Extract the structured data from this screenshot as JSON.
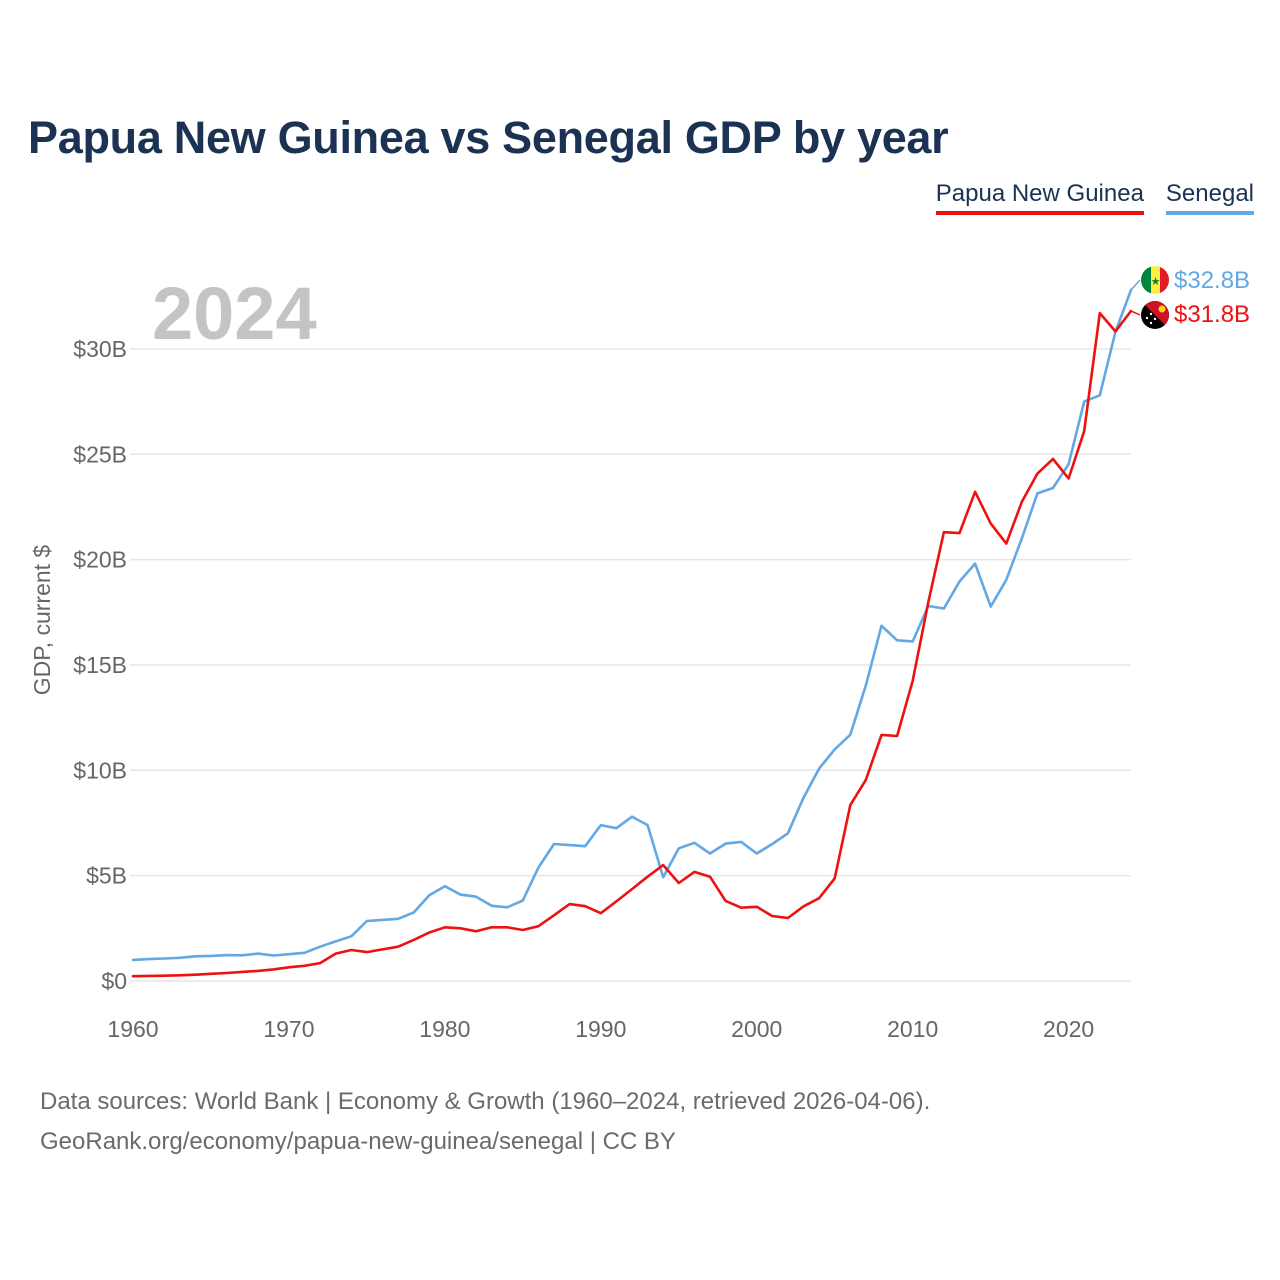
{
  "title": "Papua New Guinea vs Senegal GDP by year",
  "legend": {
    "png_label": "Papua New Guinea",
    "senegal_label": "Senegal"
  },
  "year_display": "2024",
  "source": {
    "line1": "Data sources: World Bank | Economy & Growth (1960–2024, retrieved 2026-04-06).",
    "line2": "GeoRank.org/economy/papua-new-guinea/senegal | CC BY"
  },
  "colors": {
    "png": "#ee1111",
    "senegal": "#62a8e5",
    "grid": "#e6e6e6",
    "axis_text": "#666666",
    "year": "#c4c4c4"
  },
  "chart_data": {
    "type": "line",
    "title": "Papua New Guinea vs Senegal GDP by year",
    "xlabel": "",
    "ylabel": "GDP, current $",
    "xlim": [
      1960,
      2024
    ],
    "ylim": [
      0,
      33
    ],
    "x_ticks": [
      1960,
      1970,
      1980,
      1990,
      2000,
      2010,
      2020
    ],
    "y_ticks": [
      0,
      5,
      10,
      15,
      20,
      25,
      30
    ],
    "y_tick_labels": [
      "$0",
      "$5B",
      "$10B",
      "$15B",
      "$20B",
      "$25B",
      "$30B"
    ],
    "end_labels": {
      "senegal": "$32.8B",
      "png": "$31.8B"
    },
    "series": [
      {
        "name": "Papua New Guinea",
        "unit": "billion USD",
        "values": [
          [
            1960,
            0.23
          ],
          [
            1961,
            0.24
          ],
          [
            1962,
            0.25
          ],
          [
            1963,
            0.27
          ],
          [
            1964,
            0.3
          ],
          [
            1965,
            0.34
          ],
          [
            1966,
            0.38
          ],
          [
            1967,
            0.43
          ],
          [
            1968,
            0.48
          ],
          [
            1969,
            0.55
          ],
          [
            1970,
            0.65
          ],
          [
            1971,
            0.72
          ],
          [
            1972,
            0.85
          ],
          [
            1973,
            1.3
          ],
          [
            1974,
            1.47
          ],
          [
            1975,
            1.37
          ],
          [
            1976,
            1.5
          ],
          [
            1977,
            1.63
          ],
          [
            1978,
            1.95
          ],
          [
            1979,
            2.3
          ],
          [
            1980,
            2.55
          ],
          [
            1981,
            2.5
          ],
          [
            1982,
            2.36
          ],
          [
            1983,
            2.55
          ],
          [
            1984,
            2.55
          ],
          [
            1985,
            2.42
          ],
          [
            1986,
            2.6
          ],
          [
            1987,
            3.12
          ],
          [
            1988,
            3.65
          ],
          [
            1989,
            3.55
          ],
          [
            1990,
            3.22
          ],
          [
            1991,
            3.78
          ],
          [
            1992,
            4.36
          ],
          [
            1993,
            4.95
          ],
          [
            1994,
            5.5
          ],
          [
            1995,
            4.65
          ],
          [
            1996,
            5.18
          ],
          [
            1997,
            4.95
          ],
          [
            1998,
            3.8
          ],
          [
            1999,
            3.48
          ],
          [
            2000,
            3.52
          ],
          [
            2001,
            3.08
          ],
          [
            2002,
            2.99
          ],
          [
            2003,
            3.54
          ],
          [
            2004,
            3.93
          ],
          [
            2005,
            4.87
          ],
          [
            2006,
            8.35
          ],
          [
            2007,
            9.55
          ],
          [
            2008,
            11.68
          ],
          [
            2009,
            11.63
          ],
          [
            2010,
            14.25
          ],
          [
            2011,
            17.98
          ],
          [
            2012,
            21.3
          ],
          [
            2013,
            21.26
          ],
          [
            2014,
            23.22
          ],
          [
            2015,
            21.72
          ],
          [
            2016,
            20.76
          ],
          [
            2017,
            22.74
          ],
          [
            2018,
            24.08
          ],
          [
            2019,
            24.78
          ],
          [
            2020,
            23.85
          ],
          [
            2021,
            26.1
          ],
          [
            2022,
            31.7
          ],
          [
            2023,
            30.83
          ],
          [
            2024,
            31.8
          ]
        ]
      },
      {
        "name": "Senegal",
        "unit": "billion USD",
        "values": [
          [
            1960,
            1.0
          ],
          [
            1961,
            1.04
          ],
          [
            1962,
            1.07
          ],
          [
            1963,
            1.1
          ],
          [
            1964,
            1.17
          ],
          [
            1965,
            1.19
          ],
          [
            1966,
            1.23
          ],
          [
            1967,
            1.22
          ],
          [
            1968,
            1.3
          ],
          [
            1969,
            1.21
          ],
          [
            1970,
            1.27
          ],
          [
            1971,
            1.34
          ],
          [
            1972,
            1.63
          ],
          [
            1973,
            1.88
          ],
          [
            1974,
            2.12
          ],
          [
            1975,
            2.85
          ],
          [
            1976,
            2.9
          ],
          [
            1977,
            2.95
          ],
          [
            1978,
            3.25
          ],
          [
            1979,
            4.07
          ],
          [
            1980,
            4.5
          ],
          [
            1981,
            4.1
          ],
          [
            1982,
            4.0
          ],
          [
            1983,
            3.57
          ],
          [
            1984,
            3.5
          ],
          [
            1985,
            3.82
          ],
          [
            1986,
            5.38
          ],
          [
            1987,
            6.5
          ],
          [
            1988,
            6.45
          ],
          [
            1989,
            6.4
          ],
          [
            1990,
            7.4
          ],
          [
            1991,
            7.25
          ],
          [
            1992,
            7.8
          ],
          [
            1993,
            7.4
          ],
          [
            1994,
            4.92
          ],
          [
            1995,
            6.3
          ],
          [
            1996,
            6.56
          ],
          [
            1997,
            6.05
          ],
          [
            1998,
            6.52
          ],
          [
            1999,
            6.6
          ],
          [
            2000,
            6.05
          ],
          [
            2001,
            6.5
          ],
          [
            2002,
            7.01
          ],
          [
            2003,
            8.7
          ],
          [
            2004,
            10.08
          ],
          [
            2005,
            10.99
          ],
          [
            2006,
            11.69
          ],
          [
            2007,
            14.04
          ],
          [
            2008,
            16.86
          ],
          [
            2009,
            16.17
          ],
          [
            2010,
            16.12
          ],
          [
            2011,
            17.8
          ],
          [
            2012,
            17.68
          ],
          [
            2013,
            18.96
          ],
          [
            2014,
            19.81
          ],
          [
            2015,
            17.77
          ],
          [
            2016,
            19.04
          ],
          [
            2017,
            21.0
          ],
          [
            2018,
            23.14
          ],
          [
            2019,
            23.4
          ],
          [
            2020,
            24.53
          ],
          [
            2021,
            27.5
          ],
          [
            2022,
            27.8
          ],
          [
            2023,
            30.8
          ],
          [
            2024,
            32.8
          ]
        ]
      }
    ]
  }
}
